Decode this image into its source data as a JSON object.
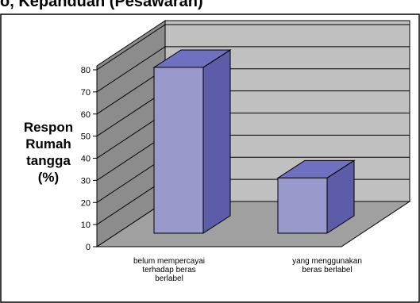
{
  "header_fragment": "o, Kepanduan (Pesawaran)",
  "chart_data": {
    "type": "bar",
    "title": "",
    "ylabel_lines": [
      "Respon",
      "Rumah",
      "tangga",
      "(%)"
    ],
    "xlabel": "",
    "ylim": [
      0,
      80
    ],
    "yticks": [
      0,
      10,
      20,
      30,
      40,
      50,
      60,
      70,
      80
    ],
    "grid": true,
    "categories": [
      {
        "lines": [
          "belum mempercayai",
          "terhadap beras",
          "berlabel"
        ],
        "value": 75
      },
      {
        "lines": [
          "yang menggunakan",
          "beras berlabel"
        ],
        "value": 25
      }
    ],
    "colors": {
      "bar_front": "#9999cc",
      "bar_side": "#5c5ca8",
      "bar_top": "#7070c0",
      "back_wall": "#c0c0c0",
      "side_wall": "#8c8c8c",
      "floor": "#a0a0a0"
    }
  }
}
